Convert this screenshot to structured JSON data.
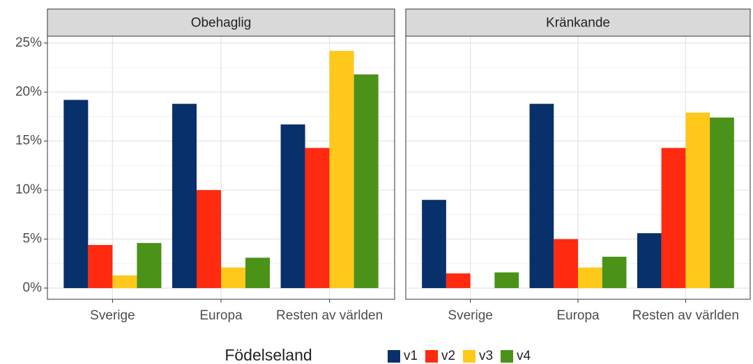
{
  "legend_title": "Födelseland",
  "chart_data": [
    {
      "type": "bar",
      "title": "Obehaglig",
      "categories": [
        "Sverige",
        "Europa",
        "Resten av världen"
      ],
      "series": [
        {
          "name": "v1",
          "color": "#08306b",
          "values": [
            19.2,
            18.8,
            16.7
          ]
        },
        {
          "name": "v2",
          "color": "#ff2a0f",
          "values": [
            4.4,
            10.0,
            14.3
          ]
        },
        {
          "name": "v3",
          "color": "#ffc81a",
          "values": [
            1.3,
            2.1,
            24.2
          ]
        },
        {
          "name": "v4",
          "color": "#4a9218",
          "values": [
            4.6,
            3.1,
            21.8
          ]
        }
      ],
      "ylim": [
        -1.14,
        25.7
      ],
      "yticks": [
        {
          "value": 0,
          "label": "0%"
        },
        {
          "value": 5,
          "label": "5%"
        },
        {
          "value": 10,
          "label": "10%"
        },
        {
          "value": 15,
          "label": "15%"
        },
        {
          "value": 20,
          "label": "20%"
        },
        {
          "value": 25,
          "label": "25%"
        }
      ],
      "grid": true
    },
    {
      "type": "bar",
      "title": "Kränkande",
      "categories": [
        "Sverige",
        "Europa",
        "Resten av världen"
      ],
      "series": [
        {
          "color": "#08306b",
          "values": [
            9.0,
            18.8,
            5.6
          ]
        },
        {
          "color": "#ff2a0f",
          "values": [
            1.5,
            5.0,
            14.3
          ]
        },
        {
          "color": "#ffc81a",
          "values": [
            0,
            2.1,
            17.9
          ]
        },
        {
          "color": "#4a9218",
          "values": [
            1.6,
            3.2,
            17.4
          ]
        }
      ],
      "ylim": [
        -1.14,
        25.7
      ],
      "yticks": [
        0,
        5,
        10,
        15,
        20,
        25
      ],
      "grid": true
    }
  ]
}
